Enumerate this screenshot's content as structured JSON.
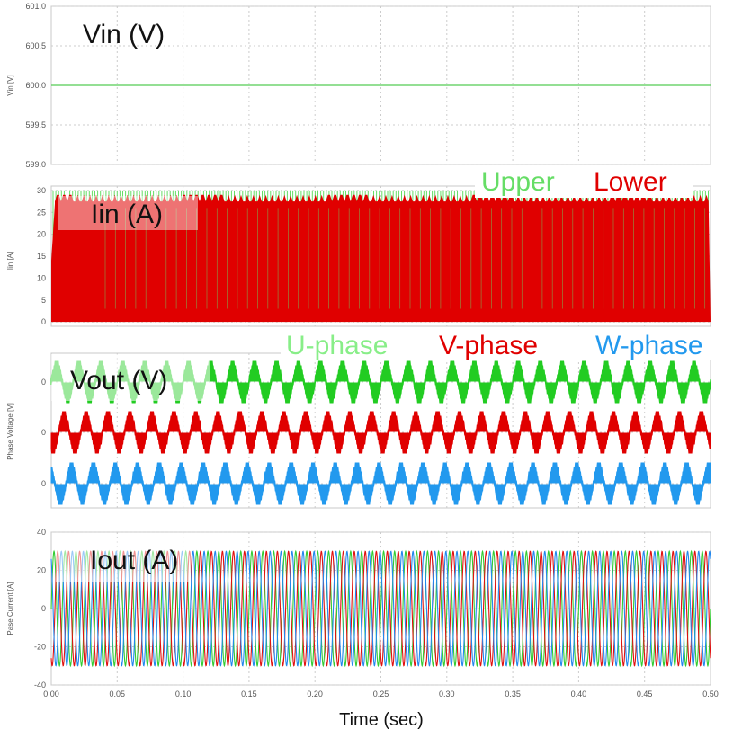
{
  "colors": {
    "vin": "#55cc55",
    "upper": "#66dd66",
    "lower": "#e00000",
    "u_phase": "#22cc22",
    "v_phase": "#e00000",
    "w_phase": "#2299ee",
    "cur_green": "#33cc33",
    "cur_red": "#e01010",
    "cur_blue": "#2288ee",
    "grid": "#cccccc"
  },
  "x_axis": {
    "title": "Time (sec)",
    "ticks": [
      "0.00",
      "0.05",
      "0.10",
      "0.15",
      "0.20",
      "0.25",
      "0.30",
      "0.35",
      "0.40",
      "0.45",
      "0.50"
    ],
    "range": [
      0,
      0.5
    ]
  },
  "chart_data": [
    {
      "type": "line",
      "annotation": "Vin (V)",
      "ylabel": "Vin [V]",
      "ylim": [
        599.0,
        601.0
      ],
      "yticks": [
        "601.0",
        "600.5",
        "600.0",
        "599.5",
        "599.0"
      ],
      "grid": true,
      "series": [
        {
          "x": [
            0,
            0.5
          ],
          "values": [
            600.0,
            600.0
          ]
        }
      ]
    },
    {
      "type": "line",
      "annotation": "Iin (A)",
      "ylabel": "Iin [A]",
      "ylim": [
        -1,
        31
      ],
      "yticks": [
        "30",
        "25",
        "20",
        "15",
        "10",
        "5",
        "0"
      ],
      "grid": true,
      "legend_position": "top-right",
      "series": [
        {
          "name": "Upper",
          "switching_between": [
            0,
            30
          ]
        },
        {
          "name": "Lower",
          "switching_between": [
            0,
            29
          ]
        }
      ]
    },
    {
      "type": "line",
      "annotation": "Vout (V)",
      "ylabel": "Phase Voltage [V]",
      "yticks": [
        "0",
        "0",
        "0"
      ],
      "grid": true,
      "legend_position": "top-right",
      "frequency_hz": 60,
      "series": [
        {
          "name": "U-phase",
          "offset": 0,
          "phase_deg": 0
        },
        {
          "name": "V-phase",
          "offset": 0,
          "phase_deg": -120
        },
        {
          "name": "W-phase",
          "offset": 0,
          "phase_deg": 120
        }
      ]
    },
    {
      "type": "line",
      "annotation": "Iout (A)",
      "ylabel": "Pase Current [A]",
      "ylim": [
        -40,
        40
      ],
      "yticks": [
        "40",
        "20",
        "0",
        "-20",
        "-40"
      ],
      "grid": true,
      "frequency_hz": 120,
      "amplitude": 30,
      "series": [
        {
          "phase_deg": 0
        },
        {
          "phase_deg": -120
        },
        {
          "phase_deg": 120
        }
      ]
    }
  ]
}
